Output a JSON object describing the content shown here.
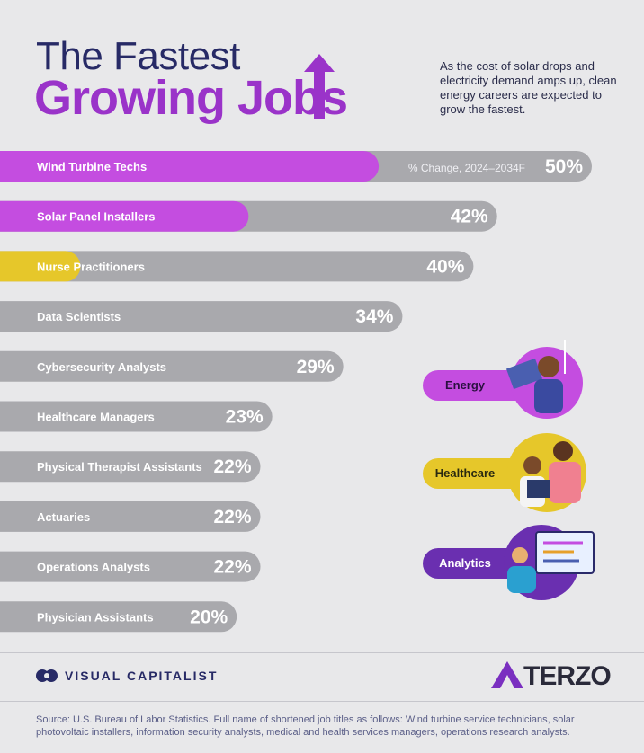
{
  "header": {
    "title_line1": "The Fastest",
    "title_line2": "Growing Jobs",
    "subtitle": "As the cost of solar drops and electricity demand amps up, clean energy careers are expected to grow the fastest."
  },
  "chart_data": {
    "type": "bar",
    "orientation": "horizontal",
    "value_label_header": "% Change, 2024–2034F",
    "categories": [
      "Wind Turbine Techs",
      "Solar Panel Installers",
      "Nurse Practitioners",
      "Data Scientists",
      "Cybersecurity Analysts",
      "Healthcare Managers",
      "Physical Therapist Assistants",
      "Actuaries",
      "Operations Analysts",
      "Physician Assistants"
    ],
    "values": [
      50,
      42,
      40,
      34,
      29,
      23,
      22,
      22,
      22,
      20
    ],
    "value_labels": [
      "50%",
      "42%",
      "40%",
      "34%",
      "29%",
      "23%",
      "22%",
      "22%",
      "22%",
      "20%"
    ],
    "legend": [
      {
        "name": "Energy",
        "color": "#c44de0"
      },
      {
        "name": "Healthcare",
        "color": "#e6c72a"
      },
      {
        "name": "Analytics",
        "color": "#6a2fb0"
      }
    ],
    "bar_color": "#a9a9ad"
  },
  "footer": {
    "brand": "VISUAL CAPITALIST",
    "sponsor": "TERZO",
    "source": "Source: U.S. Bureau of Labor Statistics. Full name of shortened job titles as follows: Wind turbine service technicians, solar photovoltaic installers, information security analysts, medical and health services managers, operations research analysts."
  }
}
